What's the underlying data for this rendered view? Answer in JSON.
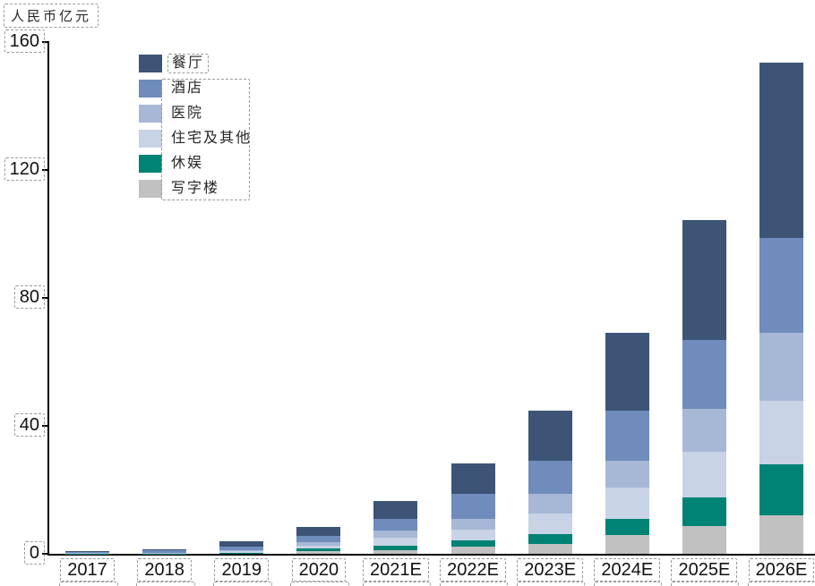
{
  "chart_data": {
    "type": "bar",
    "stacked": true,
    "title": "",
    "unit_label": "人民币亿元",
    "categories": [
      "2017",
      "2018",
      "2019",
      "2020",
      "2021E",
      "2022E",
      "2023E",
      "2024E",
      "2025E",
      "2026E"
    ],
    "series": [
      {
        "name": "餐厅",
        "color": "#3d5476",
        "values": [
          0.3,
          0.5,
          1.8,
          2.7,
          5.6,
          9.4,
          15.6,
          24.3,
          37.3,
          54.7
        ]
      },
      {
        "name": "酒店",
        "color": "#6f8cbc",
        "values": [
          0.2,
          0.6,
          1.1,
          1.9,
          3.7,
          7.8,
          10.4,
          15.6,
          21.5,
          29.6
        ]
      },
      {
        "name": "医院",
        "color": "#a6b8d6",
        "values": [
          0.1,
          0.15,
          0.35,
          1.2,
          2.3,
          3.4,
          6.1,
          8.4,
          13.5,
          21.1
        ]
      },
      {
        "name": "住宅及其他",
        "color": "#c9d3e6",
        "values": [
          0.1,
          0.15,
          0.35,
          0.9,
          2.5,
          3.3,
          6.5,
          9.8,
          14.4,
          19.9
        ]
      },
      {
        "name": "休娱",
        "color": "#008274",
        "values": [
          0.05,
          0.05,
          0.2,
          0.65,
          1.3,
          2.0,
          2.9,
          5.1,
          8.9,
          16.1
        ]
      },
      {
        "name": "写字楼",
        "color": "#c1c1c1",
        "values": [
          0.05,
          0.05,
          0.2,
          0.95,
          1.1,
          2.3,
          3.2,
          5.8,
          8.6,
          11.9
        ]
      }
    ],
    "stack_order_bottom_to_top": [
      "写字楼",
      "休娱",
      "住宅及其他",
      "医院",
      "酒店",
      "餐厅"
    ],
    "totals": [
      0.8,
      1.5,
      4.0,
      8.3,
      16.5,
      28.2,
      44.7,
      69.0,
      104.2,
      153.3
    ],
    "ylim": [
      0,
      160
    ],
    "yticks": [
      0,
      40,
      80,
      120,
      160
    ],
    "ytick_labels": [
      "0",
      "40",
      "80",
      "120",
      "160"
    ],
    "grid": false,
    "legend_position": "upper-left-inside"
  },
  "annotations": {
    "dashed_box_color": "#9a9a9a",
    "note": "dashed selection boxes drawn around y-axis title, each axis tick label, first legend label, legend label group, and cropped boxes below x labels"
  },
  "colors": {
    "background": "#ffffff",
    "axis": "#000000",
    "tick_text": "#111111",
    "cjk_text": "#262626"
  }
}
